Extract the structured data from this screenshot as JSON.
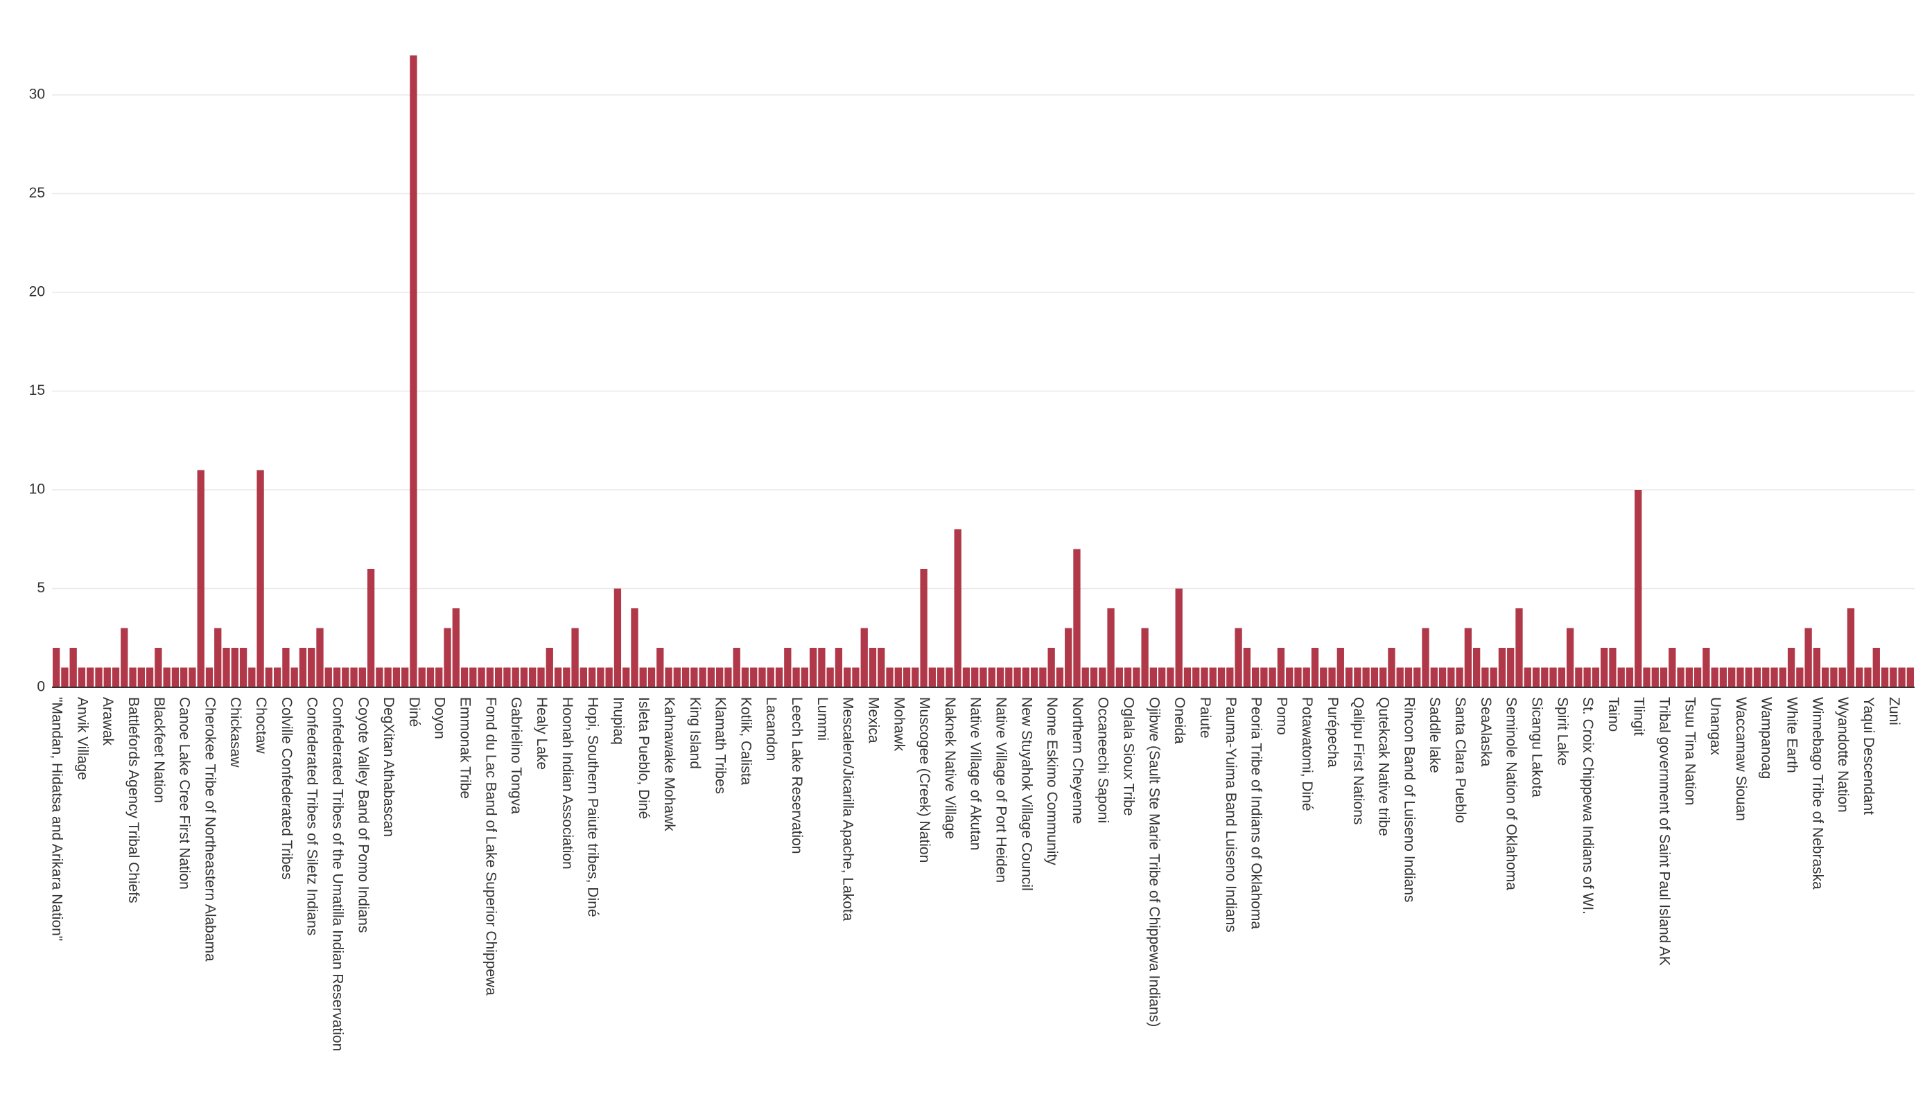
{
  "chart_data": {
    "type": "bar",
    "color": "#b03848",
    "grid": true,
    "ylim": [
      0,
      32
    ],
    "yticks": [
      0,
      5,
      10,
      15,
      20,
      25,
      30
    ],
    "categories": [
      "\"Mandan, Hidatsa and Arikara Nation\"",
      null,
      null,
      "Anvik Village",
      null,
      null,
      "Arawak",
      null,
      null,
      "Battlefords Agency Tribal Chiefs",
      null,
      null,
      "Blackfeet Nation",
      null,
      null,
      "Canoe Lake Cree First Nation",
      null,
      null,
      "Cherokee Tribe of Northeastern Alabama",
      null,
      null,
      "Chickasaw",
      null,
      null,
      "Choctaw",
      null,
      null,
      "Colville Confederated Tribes",
      null,
      null,
      "Confederated Tribes of Siletz Indians",
      null,
      null,
      "Confederated Tribes of the Umatilla Indian Reservation",
      null,
      null,
      "Coyote Valley Band of Pomo Indians",
      null,
      null,
      "DegXitan Athabascan",
      null,
      null,
      "Diné",
      null,
      null,
      "Doyon",
      null,
      null,
      "Emmonak Tribe",
      null,
      null,
      "Fond du Lac Band of Lake Superior Chippewa",
      null,
      null,
      "Gabrielino Tongva",
      null,
      null,
      "Healy Lake",
      null,
      null,
      "Hoonah Indian Association",
      null,
      null,
      "Hopi, Southern Paiute tribes, Diné",
      null,
      null,
      "Inupiaq",
      null,
      null,
      "Isleta Pueblo, Diné",
      null,
      null,
      "Kahnawake Mohawk",
      null,
      null,
      "King Island",
      null,
      null,
      "Klamath Tribes",
      null,
      null,
      "Kotlik, Calista",
      null,
      null,
      "Lacandon",
      null,
      null,
      "Leech Lake Reservation",
      null,
      null,
      "Lummi",
      null,
      null,
      "Mescalero/Jicarilla Apache, Lakota",
      null,
      null,
      "Mexica",
      null,
      null,
      "Mohawk",
      null,
      null,
      "Muscogee (Creek) Nation",
      null,
      null,
      "Naknek Native Village",
      null,
      null,
      "Native Village of Akutan",
      null,
      null,
      "Native Village of Port Heiden",
      null,
      null,
      "New Stuyahok Village Council",
      null,
      null,
      "Nome Eskimo Community",
      null,
      null,
      "Northern Cheyenne",
      null,
      null,
      "Occaneechi Saponi",
      null,
      null,
      "Oglala Sioux Tribe",
      null,
      null,
      "Ojibwe (Sault Ste Marie Tribe of Chippewa Indians)",
      null,
      null,
      "Oneida",
      null,
      null,
      "Paiute",
      null,
      null,
      "Pauma-Yuima Band Luiseno Indians",
      null,
      null,
      "Peoria Tribe of Indians of Oklahoma",
      null,
      null,
      "Pomo",
      null,
      null,
      "Potawatomi, Diné",
      null,
      null,
      "Purépecha",
      null,
      null,
      "Qalipu First Nations",
      null,
      null,
      "Qutekcak Native tribe",
      null,
      null,
      "Rincon Band of Luiseno Indians",
      null,
      null,
      "Saddle lake",
      null,
      null,
      "Santa Clara Pueblo",
      null,
      null,
      "SeaAlaska",
      null,
      null,
      "Seminole Nation of Oklahoma",
      null,
      null,
      "Sicangu Lakota",
      null,
      null,
      "Spirit Lake",
      null,
      null,
      "St. Croix Chippewa Indians of WI.",
      null,
      null,
      "Taino",
      null,
      null,
      "Tlingit",
      null,
      null,
      "Tribal government of Saint Paul Island AK",
      null,
      null,
      "Tsuu Tina Nation",
      null,
      null,
      "Unangax",
      null,
      null,
      "Waccamaw Siouan",
      null,
      null,
      "Wampanoag",
      null,
      null,
      "White Earth",
      null,
      null,
      "Winnebago Tribe of Nebraska",
      null,
      null,
      "Wyandotte Nation",
      null,
      null,
      "Yaqui Descendant",
      null,
      null,
      "Zuni",
      null,
      null
    ],
    "values": [
      2,
      1,
      2,
      1,
      1,
      1,
      1,
      1,
      3,
      1,
      1,
      1,
      2,
      1,
      1,
      1,
      1,
      11,
      1,
      3,
      2,
      2,
      2,
      1,
      11,
      1,
      1,
      2,
      1,
      2,
      2,
      3,
      1,
      1,
      1,
      1,
      1,
      6,
      1,
      1,
      1,
      1,
      32,
      1,
      1,
      1,
      3,
      4,
      1,
      1,
      1,
      1,
      1,
      1,
      1,
      1,
      1,
      1,
      2,
      1,
      1,
      3,
      1,
      1,
      1,
      1,
      5,
      1,
      4,
      1,
      1,
      2,
      1,
      1,
      1,
      1,
      1,
      1,
      1,
      1,
      2,
      1,
      1,
      1,
      1,
      1,
      2,
      1,
      1,
      2,
      2,
      1,
      2,
      1,
      1,
      3,
      2,
      2,
      1,
      1,
      1,
      1,
      6,
      1,
      1,
      1,
      8,
      1,
      1,
      1,
      1,
      1,
      1,
      1,
      1,
      1,
      1,
      2,
      1,
      3,
      7,
      1,
      1,
      1,
      4,
      1,
      1,
      1,
      3,
      1,
      1,
      1,
      5,
      1,
      1,
      1,
      1,
      1,
      1,
      3,
      2,
      1,
      1,
      1,
      2,
      1,
      1,
      1,
      2,
      1,
      1,
      2,
      1,
      1,
      1,
      1,
      1,
      2,
      1,
      1,
      1,
      3,
      1,
      1,
      1,
      1,
      3,
      2,
      1,
      1,
      2,
      2,
      4,
      1,
      1,
      1,
      1,
      1,
      3,
      1,
      1,
      1,
      2,
      2,
      1,
      1,
      10,
      1,
      1,
      1,
      2,
      1,
      1,
      1,
      2,
      1,
      1,
      1,
      1,
      1,
      1,
      1,
      1,
      1,
      2,
      1,
      3,
      2,
      1,
      1,
      1,
      4,
      1,
      1,
      2,
      1,
      1,
      1,
      1
    ]
  }
}
